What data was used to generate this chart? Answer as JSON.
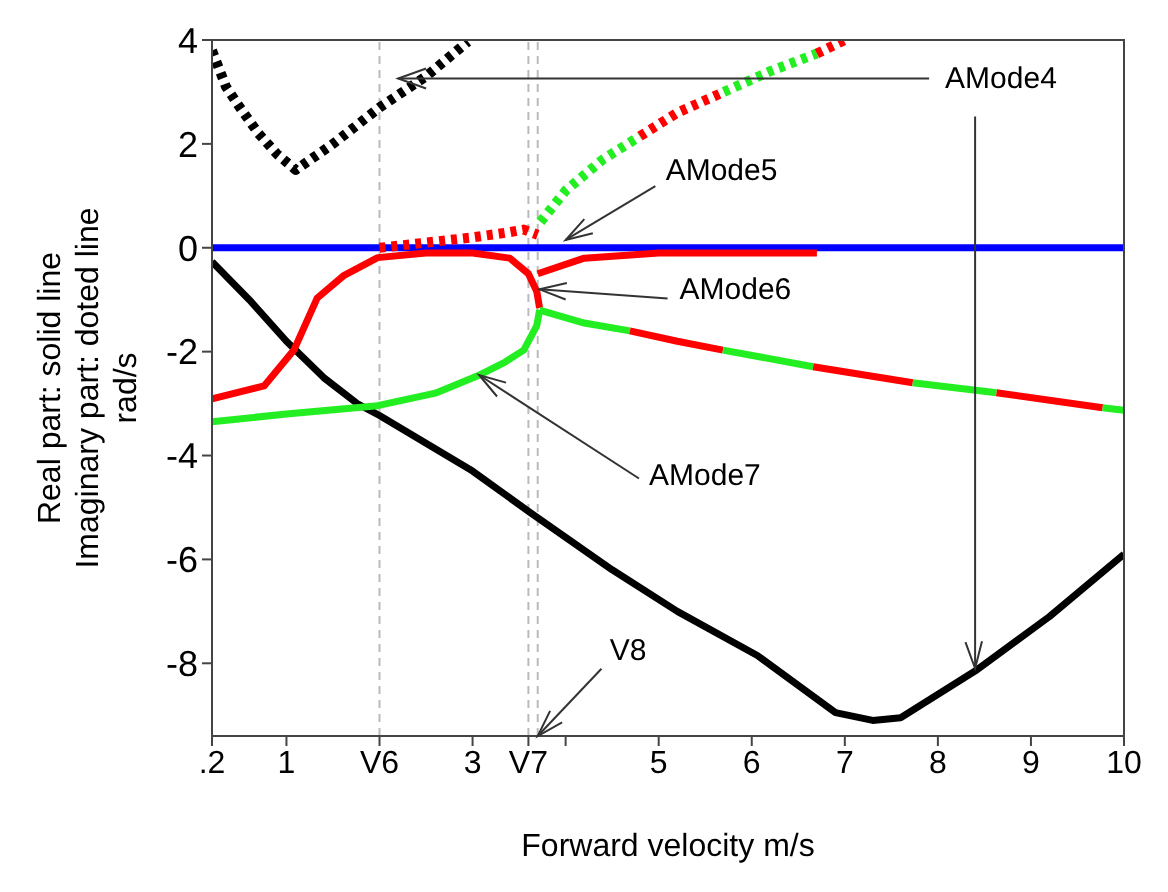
{
  "chart_data": {
    "type": "line",
    "xlabel": "Forward velocity m/s",
    "ylabel": "Real part: solid line\nImaginary part: doted line\nrad/s",
    "xlim": [
      0.2,
      10
    ],
    "ylim": [
      -9.4,
      4
    ],
    "xticks": [
      {
        "value": 0.2,
        "label": ".2"
      },
      1,
      {
        "value": 2,
        "label": "V6"
      },
      3,
      {
        "value": 3.6,
        "label": "V7"
      },
      {
        "value": 4,
        "label": null
      },
      5,
      6,
      7,
      8,
      9,
      10
    ],
    "yticks": [
      -8,
      -6,
      -4,
      -2,
      0,
      2,
      4
    ],
    "grid": false,
    "ref_lines": [
      {
        "axis": "x",
        "value": 2,
        "color": "#bbbbbb",
        "line_style": "dashed"
      },
      {
        "axis": "x",
        "value": 3.6,
        "color": "#bbbbbb",
        "line_style": "dashed"
      },
      {
        "axis": "x",
        "value": 3.7,
        "color": "#bbbbbb",
        "line_style": "dashed"
      }
    ],
    "annotations": [
      {
        "text": "AMode4",
        "x": 8.4,
        "y": -8.1
      },
      {
        "text": "AMode5",
        "x": 4.0,
        "y": 0.15
      },
      {
        "text": "AMode6",
        "x": 3.72,
        "y": -0.8
      },
      {
        "text": "AMode7",
        "x": 3.07,
        "y": -2.45
      },
      {
        "text": "V8",
        "x": 3.7,
        "y": -9.4
      }
    ],
    "series": [
      {
        "color": "#0000ff",
        "line_style": "solid",
        "x": [
          0.2,
          10
        ],
        "values": [
          0,
          0
        ]
      },
      {
        "color": "#ff0000",
        "line_style": "solid",
        "x": [
          3.7,
          4.2,
          5,
          6.7
        ],
        "values": [
          -0.5,
          -0.2,
          -0.1,
          -0.1
        ]
      },
      {
        "color": "#000000",
        "line_style": "dotted",
        "x": [
          0.2,
          0.35,
          0.5,
          0.7,
          0.9,
          1.1,
          1.5,
          2,
          2.5,
          2.95
        ],
        "values": [
          3.8,
          3.1,
          2.7,
          2.2,
          1.8,
          1.5,
          2.0,
          2.7,
          3.3,
          3.97
        ]
      },
      {
        "color": "#000000",
        "line_style": "solid",
        "x": [
          0.2,
          0.6,
          1.0,
          1.4,
          1.76,
          2,
          3,
          3.62,
          4.5,
          5.2,
          6.06,
          6.9,
          7.3,
          7.6,
          8.4,
          9.2,
          10
        ],
        "values": [
          -0.27,
          -1.0,
          -1.8,
          -2.5,
          -3.0,
          -3.23,
          -4.3,
          -5.1,
          -6.2,
          -7.0,
          -7.85,
          -8.95,
          -9.1,
          -9.05,
          -8.15,
          -7.1,
          -5.9
        ]
      },
      {
        "color": "#ff0000",
        "line_style": "dotted",
        "x": [
          2,
          2.5,
          3,
          3.4,
          3.55,
          3.7
        ],
        "values": [
          0.0,
          0.1,
          0.2,
          0.3,
          0.35,
          0.25
        ]
      },
      {
        "color": "#22ee22",
        "line_style": "dotted",
        "x": [
          3.73,
          4.0,
          4.4,
          4.8
        ],
        "values": [
          0.5,
          1.1,
          1.7,
          2.15
        ]
      },
      {
        "color": "#ff0000",
        "line_style": "dotted",
        "x": [
          4.8,
          5.2,
          5.7
        ],
        "values": [
          2.15,
          2.6,
          3.0
        ]
      },
      {
        "color": "#22ee22",
        "line_style": "dotted",
        "x": [
          5.7,
          6.2,
          6.7
        ],
        "values": [
          3.0,
          3.4,
          3.74
        ]
      },
      {
        "color": "#ff0000",
        "line_style": "dotted",
        "x": [
          6.7,
          7.0
        ],
        "values": [
          3.74,
          4.0
        ]
      },
      {
        "color": "#ff0000",
        "line_style": "solid",
        "x": [
          0.2,
          0.76,
          1.08,
          1.33,
          1.62,
          1.98,
          2.5,
          3.0,
          3.4,
          3.6,
          3.69,
          3.72
        ],
        "values": [
          -2.91,
          -2.66,
          -1.97,
          -0.97,
          -0.53,
          -0.19,
          -0.1,
          -0.1,
          -0.2,
          -0.5,
          -0.84,
          -1.16
        ]
      },
      {
        "color": "#22ee22",
        "line_style": "solid",
        "x": [
          0.2,
          1.0,
          1.98,
          2.6,
          3.05,
          3.35,
          3.55,
          3.69,
          3.72
        ],
        "values": [
          -3.35,
          -3.2,
          -3.04,
          -2.8,
          -2.47,
          -2.2,
          -1.97,
          -1.5,
          -1.2
        ]
      },
      {
        "color": "#22ee22",
        "line_style": "solid",
        "x": [
          3.72,
          4.2,
          4.69
        ],
        "values": [
          -1.2,
          -1.45,
          -1.6
        ]
      },
      {
        "color": "#ff0000",
        "line_style": "solid",
        "x": [
          4.69,
          5.2,
          5.69
        ],
        "values": [
          -1.6,
          -1.8,
          -1.97
        ]
      },
      {
        "color": "#22ee22",
        "line_style": "solid",
        "x": [
          5.69,
          6.66
        ],
        "values": [
          -1.97,
          -2.29
        ]
      },
      {
        "color": "#ff0000",
        "line_style": "solid",
        "x": [
          6.66,
          7.73
        ],
        "values": [
          -2.29,
          -2.6
        ]
      },
      {
        "color": "#22ee22",
        "line_style": "solid",
        "x": [
          7.73,
          8.63
        ],
        "values": [
          -2.6,
          -2.79
        ]
      },
      {
        "color": "#ff0000",
        "line_style": "solid",
        "x": [
          8.63,
          9.77
        ],
        "values": [
          -2.79,
          -3.08
        ]
      },
      {
        "color": "#22ee22",
        "line_style": "solid",
        "x": [
          9.77,
          10
        ],
        "values": [
          -3.08,
          -3.13
        ]
      }
    ]
  }
}
